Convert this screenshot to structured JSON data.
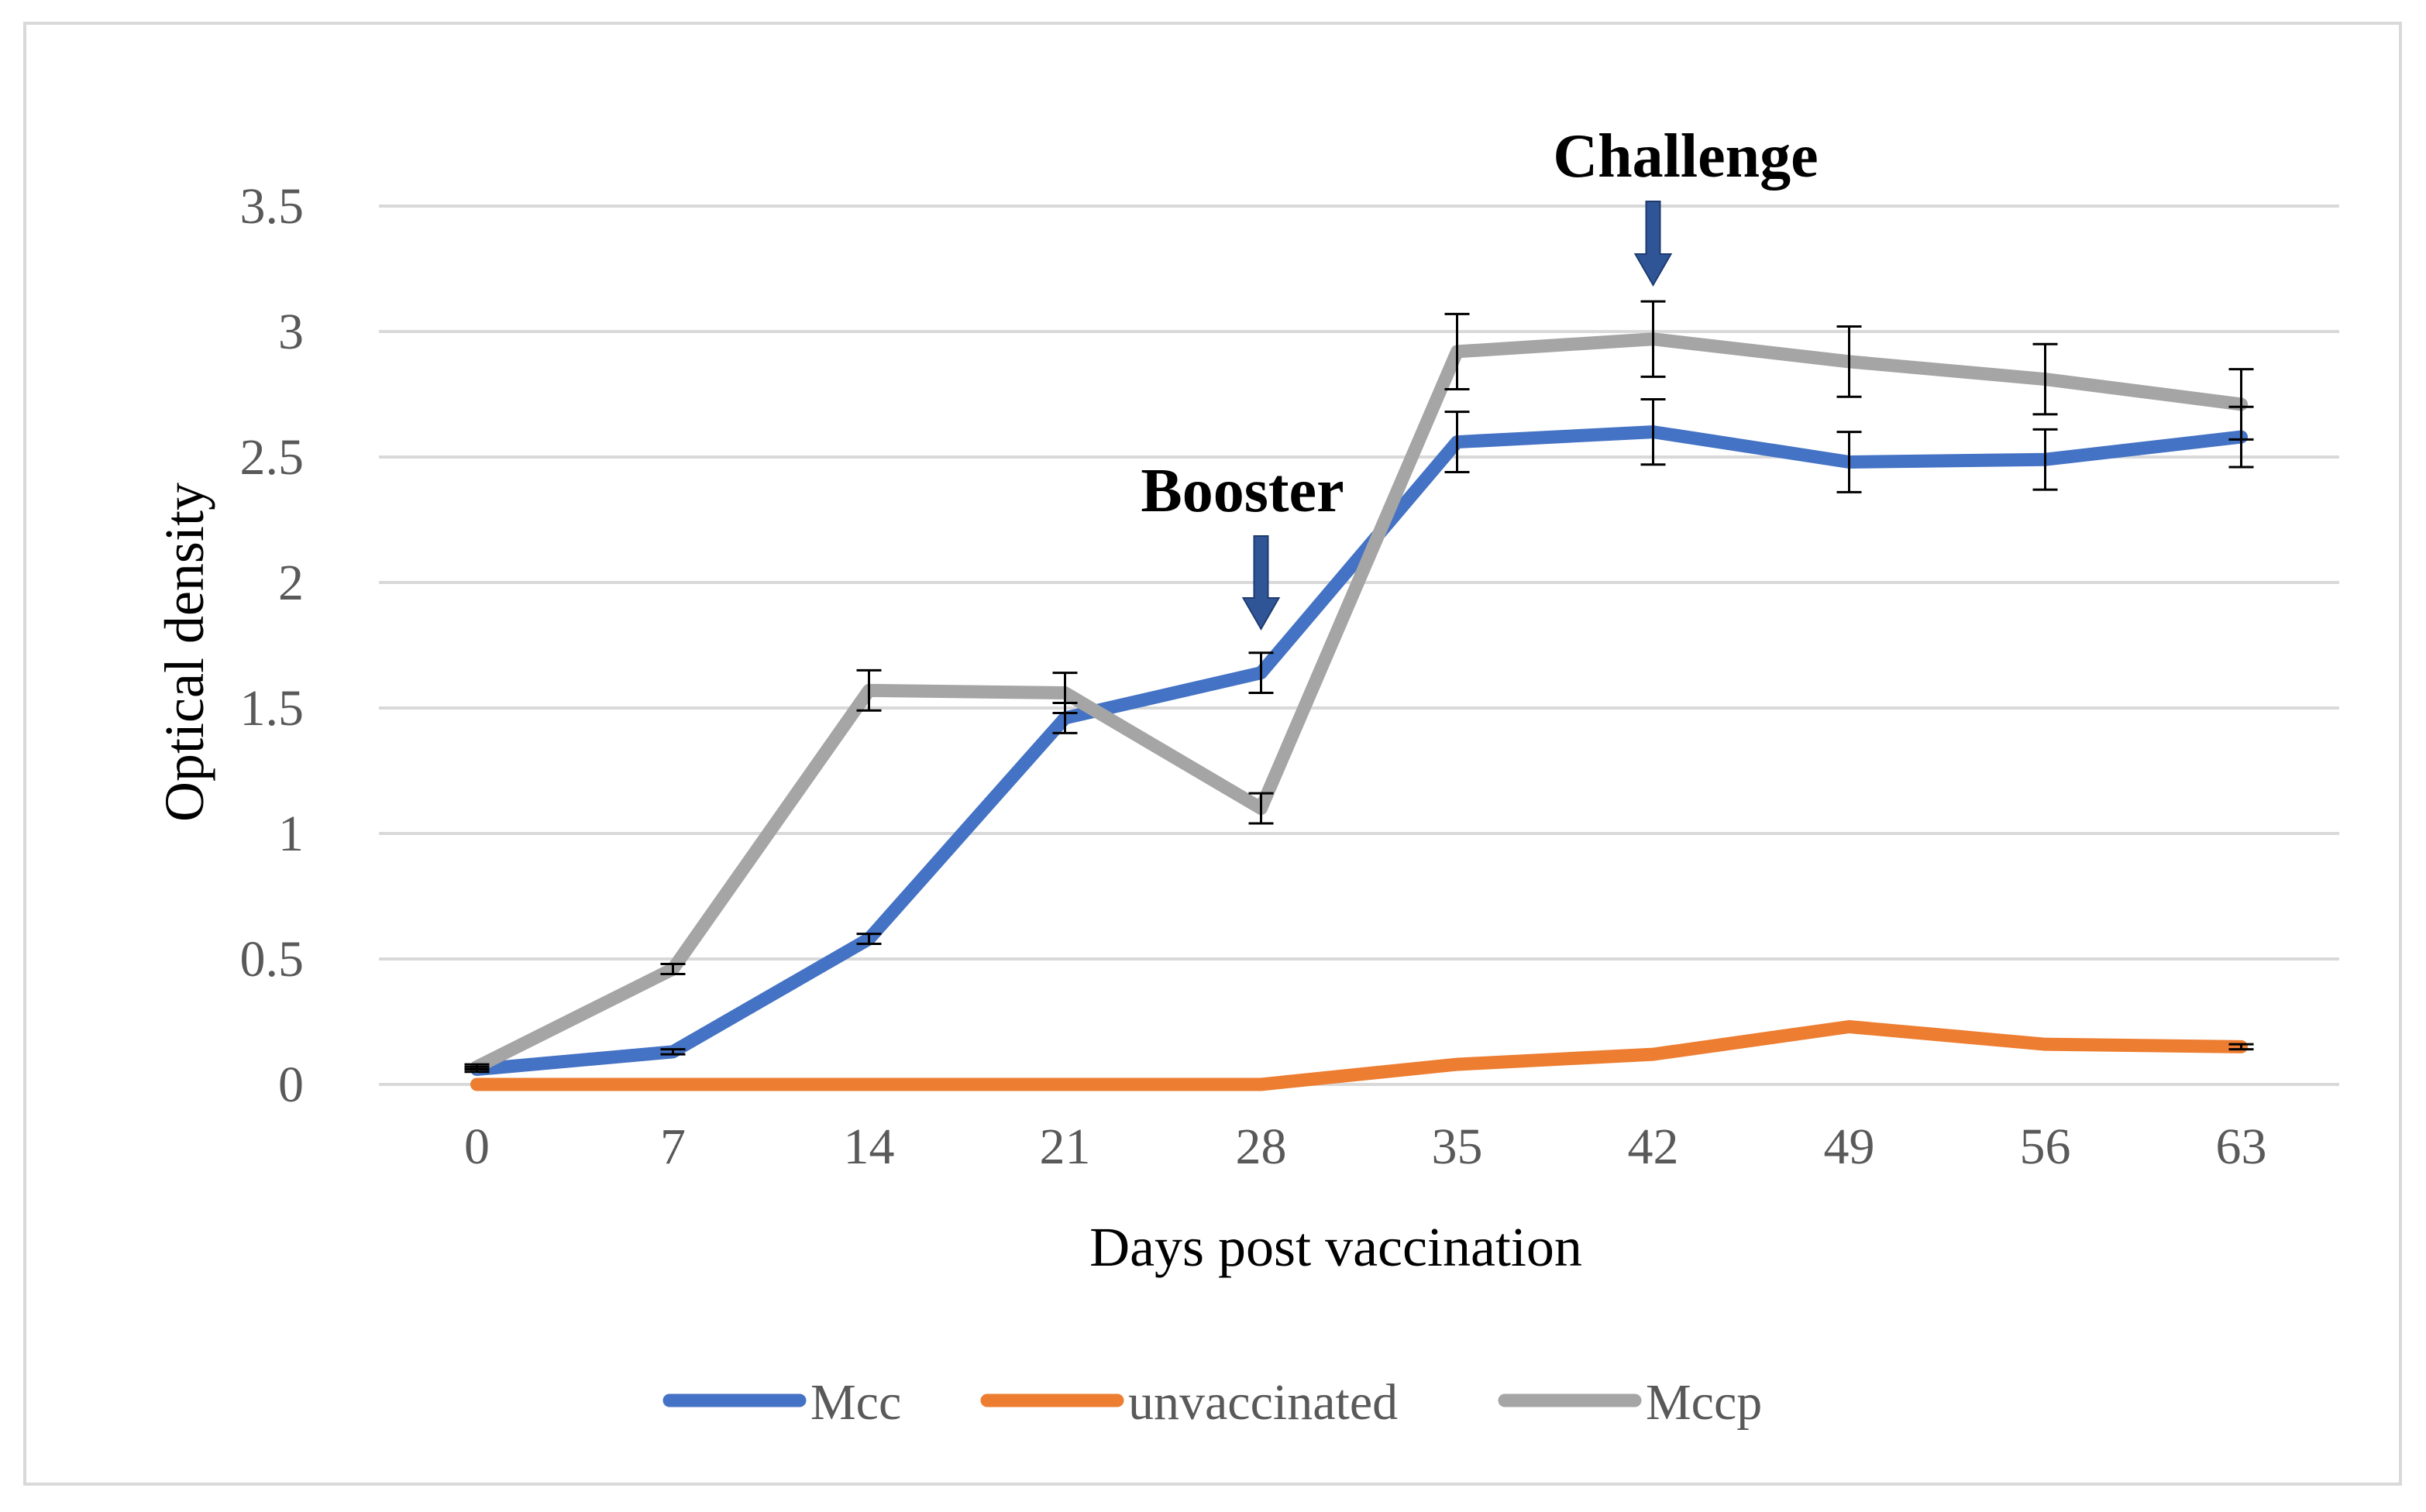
{
  "chart_data": {
    "type": "line",
    "title": "",
    "xlabel": "Days post vaccination",
    "ylabel": "Optical density",
    "categories": [
      "0",
      "7",
      "14",
      "21",
      "28",
      "35",
      "42",
      "49",
      "56",
      "63"
    ],
    "ylim": [
      0,
      3.5
    ],
    "yticks": [
      "0",
      "0.5",
      "1",
      "1.5",
      "2",
      "2.5",
      "3",
      "3.5"
    ],
    "grid": true,
    "legend_position": "bottom",
    "series": [
      {
        "name": "Mcc",
        "color": "#4472C4",
        "values": [
          0.06,
          0.13,
          0.58,
          1.46,
          1.64,
          2.56,
          2.6,
          2.48,
          2.49,
          2.58
        ],
        "errors": [
          0.01,
          0.01,
          0.02,
          0.06,
          0.08,
          0.12,
          0.13,
          0.12,
          0.12,
          0.12
        ]
      },
      {
        "name": "unvaccinated",
        "color": "#ED7D31",
        "values": [
          0.0,
          0.0,
          0.0,
          0.0,
          0.0,
          0.08,
          0.12,
          0.23,
          0.16,
          0.15
        ],
        "errors": [
          0,
          0,
          0,
          0,
          0,
          0,
          0,
          0,
          0,
          0.01
        ]
      },
      {
        "name": "Mccp",
        "color": "#A5A5A5",
        "values": [
          0.07,
          0.46,
          1.57,
          1.56,
          1.1,
          2.92,
          2.97,
          2.88,
          2.81,
          2.71
        ],
        "errors": [
          0.01,
          0.02,
          0.08,
          0.08,
          0.06,
          0.15,
          0.15,
          0.14,
          0.14,
          0.14
        ]
      }
    ],
    "annotations": [
      {
        "text": "Booster",
        "x": "28",
        "arrow_color": "#2F5597"
      },
      {
        "text": "Challenge",
        "x": "42",
        "arrow_color": "#2F5597"
      }
    ]
  }
}
